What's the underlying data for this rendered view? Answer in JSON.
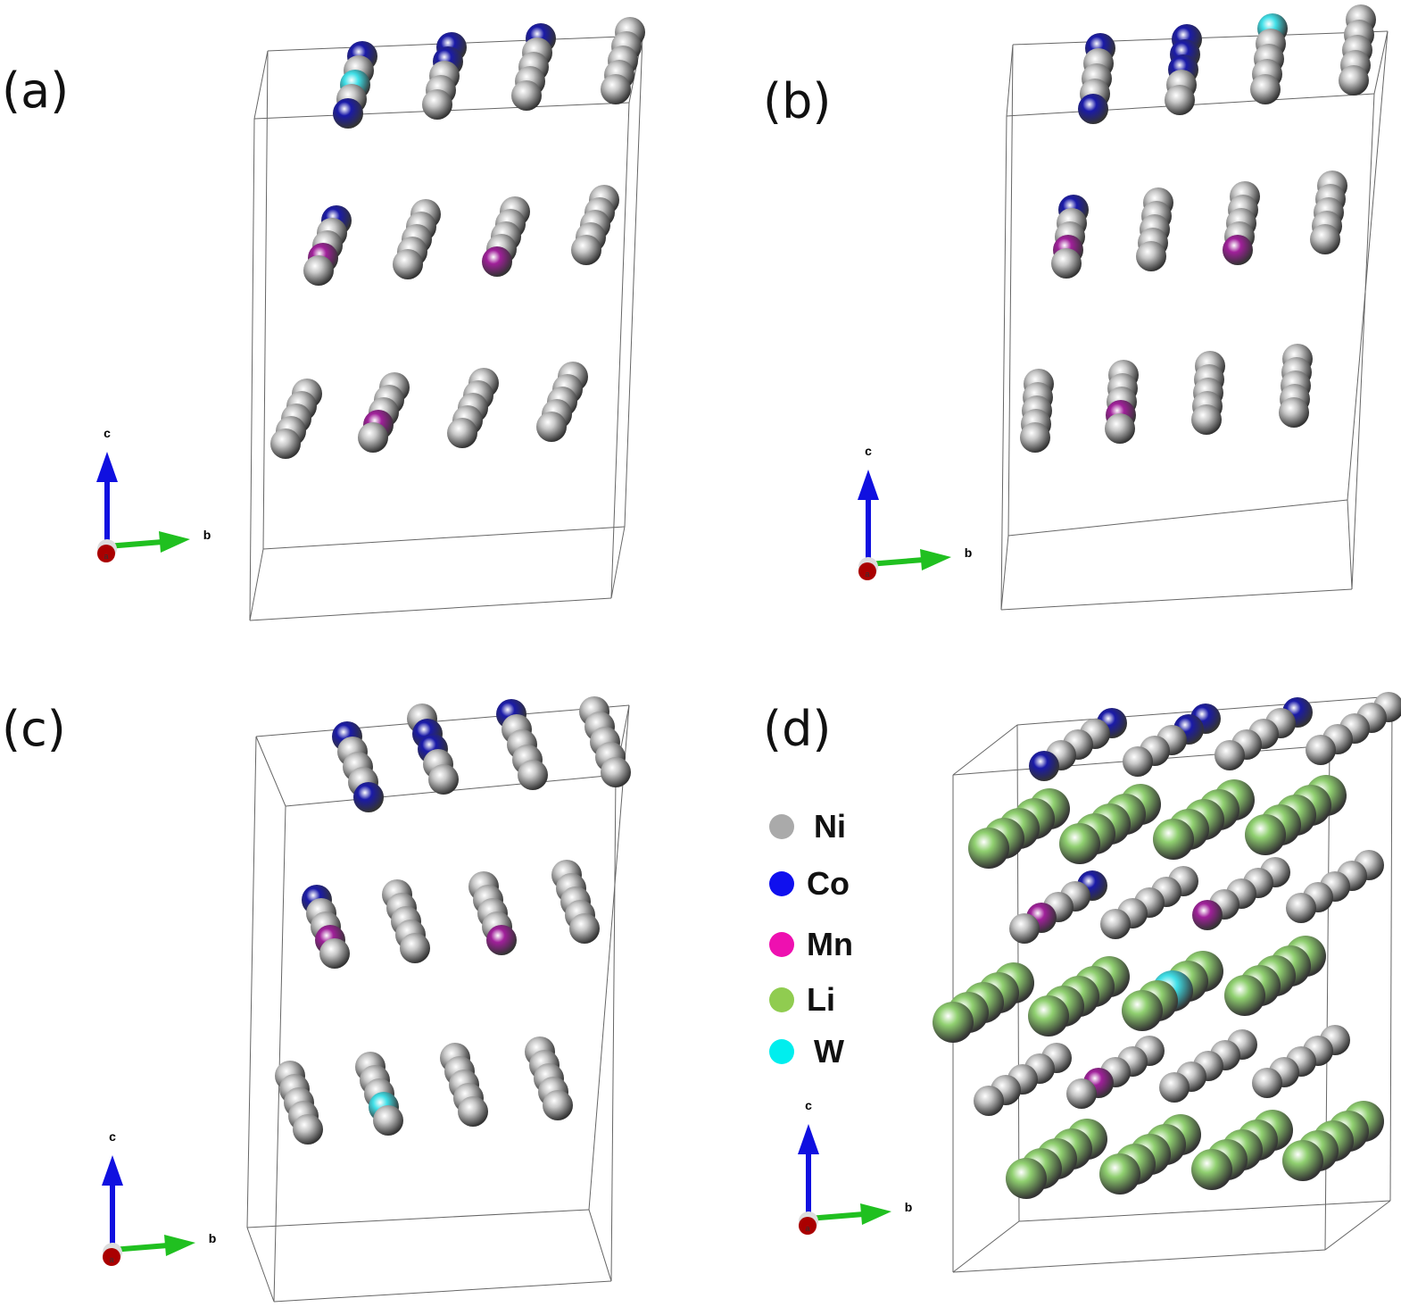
{
  "panels": [
    {
      "label": "(a)",
      "rows": [
        [
          [
            "Co",
            "Ni",
            "W",
            "Ni",
            "Co"
          ],
          [
            "Ni",
            "Ni",
            "Ni",
            "Co",
            "Co"
          ],
          [
            "Ni",
            "Ni",
            "Ni",
            "Ni",
            "Co"
          ],
          [
            "Ni",
            "Ni",
            "Ni",
            "Ni",
            "Ni"
          ]
        ],
        [
          [
            "Ni",
            "Mn",
            "Ni",
            "Ni",
            "Co"
          ],
          [
            "Ni",
            "Ni",
            "Ni",
            "Ni",
            "Ni"
          ],
          [
            "Mn",
            "Ni",
            "Ni",
            "Ni",
            "Ni"
          ],
          [
            "Ni",
            "Ni",
            "Ni",
            "Ni",
            "Ni"
          ]
        ],
        [
          [
            "Ni",
            "Ni",
            "Ni",
            "Ni",
            "Ni"
          ],
          [
            "Ni",
            "Mn",
            "Ni",
            "Ni",
            "Ni"
          ],
          [
            "Ni",
            "Ni",
            "Ni",
            "Ni",
            "Ni"
          ],
          [
            "Ni",
            "Ni",
            "Ni",
            "Ni",
            "Ni"
          ]
        ]
      ]
    },
    {
      "label": "(b)",
      "rows": [
        [
          [
            "Co",
            "Ni",
            "Ni",
            "Ni",
            "Co"
          ],
          [
            "Ni",
            "Ni",
            "Co",
            "Co",
            "Co"
          ],
          [
            "Ni",
            "Ni",
            "Ni",
            "Ni",
            "W"
          ],
          [
            "Ni",
            "Ni",
            "Ni",
            "Ni",
            "Ni"
          ]
        ],
        [
          [
            "Ni",
            "Mn",
            "Ni",
            "Ni",
            "Co"
          ],
          [
            "Ni",
            "Ni",
            "Ni",
            "Ni",
            "Ni"
          ],
          [
            "Mn",
            "Ni",
            "Ni",
            "Ni",
            "Ni"
          ],
          [
            "Ni",
            "Ni",
            "Ni",
            "Ni",
            "Ni"
          ]
        ],
        [
          [
            "Ni",
            "Ni",
            "Ni",
            "Ni",
            "Ni"
          ],
          [
            "Ni",
            "Mn",
            "Ni",
            "Ni",
            "Ni"
          ],
          [
            "Ni",
            "Ni",
            "Ni",
            "Ni",
            "Ni"
          ],
          [
            "Ni",
            "Ni",
            "Ni",
            "Ni",
            "Ni"
          ]
        ]
      ]
    },
    {
      "label": "(c)",
      "rows": [
        [
          [
            "Co",
            "Ni",
            "Ni",
            "Ni",
            "Co"
          ],
          [
            "Ni",
            "Ni",
            "Co",
            "Co",
            "Ni"
          ],
          [
            "Ni",
            "Ni",
            "Ni",
            "Ni",
            "Co"
          ],
          [
            "Ni",
            "Ni",
            "Ni",
            "Ni",
            "Ni"
          ]
        ],
        [
          [
            "Ni",
            "Mn",
            "Ni",
            "Ni",
            "Co"
          ],
          [
            "Ni",
            "Ni",
            "Ni",
            "Ni",
            "Ni"
          ],
          [
            "Mn",
            "Ni",
            "Ni",
            "Ni",
            "Ni"
          ],
          [
            "Ni",
            "Ni",
            "Ni",
            "Ni",
            "Ni"
          ]
        ],
        [
          [
            "Ni",
            "Ni",
            "Ni",
            "Ni",
            "Ni"
          ],
          [
            "Ni",
            "W",
            "Ni",
            "Ni",
            "Ni"
          ],
          [
            "Ni",
            "Ni",
            "Ni",
            "Ni",
            "Ni"
          ],
          [
            "Ni",
            "Ni",
            "Ni",
            "Ni",
            "Ni"
          ]
        ]
      ]
    },
    {
      "label": "(d)",
      "rows": [
        [
          [
            "Co",
            "Ni",
            "Ni",
            "Ni",
            "Co"
          ],
          [
            "Ni",
            "Ni",
            "Ni",
            "Co",
            "Co"
          ],
          [
            "Ni",
            "Ni",
            "Ni",
            "Ni",
            "Co"
          ],
          [
            "Ni",
            "Ni",
            "Ni",
            "Ni",
            "Ni"
          ]
        ],
        [
          [
            "Li",
            "Li",
            "Li",
            "Li",
            "Li"
          ],
          [
            "Li",
            "Li",
            "Li",
            "Li",
            "Li"
          ],
          [
            "Li",
            "Li",
            "Li",
            "Li",
            "Li"
          ],
          [
            "Li",
            "Li",
            "Li",
            "Li",
            "Li"
          ]
        ],
        [
          [
            "Ni",
            "Mn",
            "Ni",
            "Ni",
            "Co"
          ],
          [
            "Ni",
            "Ni",
            "Ni",
            "Ni",
            "Ni"
          ],
          [
            "Mn",
            "Ni",
            "Ni",
            "Ni",
            "Ni"
          ],
          [
            "Ni",
            "Ni",
            "Ni",
            "Ni",
            "Ni"
          ]
        ],
        [
          [
            "Li",
            "Li",
            "Li",
            "Li",
            "Li"
          ],
          [
            "Li",
            "Li",
            "Li",
            "Li",
            "Li"
          ],
          [
            "Li",
            "Li",
            "W",
            "Li",
            "Li"
          ],
          [
            "Li",
            "Li",
            "Li",
            "Li",
            "Li"
          ]
        ],
        [
          [
            "Ni",
            "Ni",
            "Ni",
            "Ni",
            "Ni"
          ],
          [
            "Ni",
            "Mn",
            "Ni",
            "Ni",
            "Ni"
          ],
          [
            "Ni",
            "Ni",
            "Ni",
            "Ni",
            "Ni"
          ],
          [
            "Ni",
            "Ni",
            "Ni",
            "Ni",
            "Ni"
          ]
        ],
        [
          [
            "Li",
            "Li",
            "Li",
            "Li",
            "Li"
          ],
          [
            "Li",
            "Li",
            "Li",
            "Li",
            "Li"
          ],
          [
            "Li",
            "Li",
            "Li",
            "Li",
            "Li"
          ],
          [
            "Li",
            "Li",
            "Li",
            "Li",
            "Li"
          ]
        ]
      ]
    }
  ],
  "axes": {
    "c": "c",
    "b": "b",
    "a": "a",
    "colors": {
      "c": "#1010e0",
      "b": "#20c020",
      "a": "#aa0000"
    }
  },
  "legend": [
    {
      "symbol": "Ni",
      "color": "#aaaaaa"
    },
    {
      "symbol": "Co",
      "color": "#1010ee"
    },
    {
      "symbol": "Mn",
      "color": "#ee10b0"
    },
    {
      "symbol": "Li",
      "color": "#90cc50"
    },
    {
      "symbol": "W",
      "color": "#00eeee"
    }
  ],
  "atom_colors": {
    "Ni": "#c8c8c8",
    "Co": "#1a1aa8",
    "Mn": "#a0209a",
    "Li": "#90d070",
    "W": "#40e0e8"
  }
}
